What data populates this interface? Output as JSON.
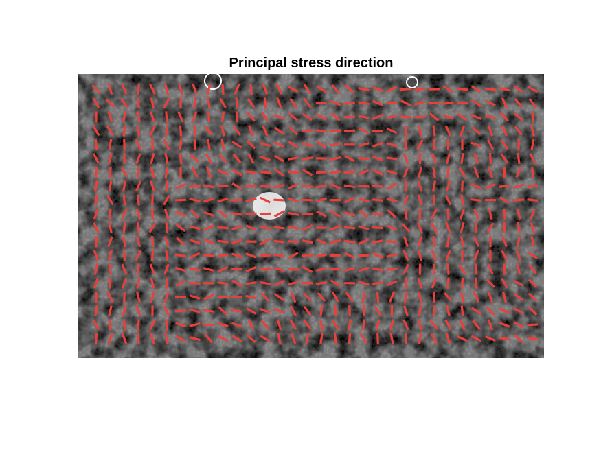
{
  "title": "Principal stress direction",
  "chart_data": {
    "type": "quiver",
    "title": "Principal stress direction",
    "xlabel": "",
    "ylabel": "",
    "axes_visible": false,
    "background": "grayscale phase-contrast microscopy image of a cell monolayer",
    "glyph": "unscaled orientation line segments (no arrowheads)",
    "line_color": "#e8403a",
    "grid": {
      "columns": 32,
      "rows": 19
    },
    "description": "Red line segments on a regular grid indicate the local principal stress orientation; segments are mostly horizontal in the central band and near-vertical along the left and lower-left regions and in the right-center region."
  }
}
